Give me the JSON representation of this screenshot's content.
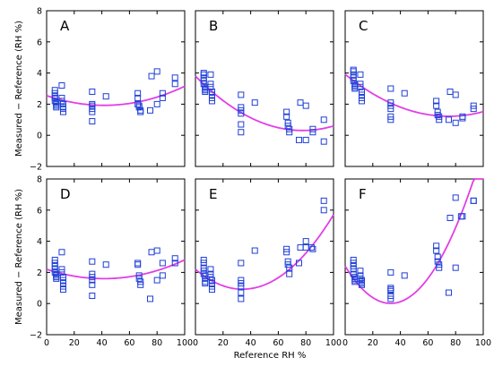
{
  "chart_data": {
    "type": "scatter",
    "xlabel": "Reference RH %",
    "ylabel": "Measured − Reference (RH %)",
    "xlim": [
      0,
      100
    ],
    "ylim": [
      -2,
      8
    ],
    "xticks": [
      "0",
      "20",
      "40",
      "60",
      "80",
      "100"
    ],
    "yticks": [
      "−2",
      "0",
      "2",
      "4",
      "6",
      "8"
    ],
    "colors": {
      "points": "#1f3fd6",
      "fit": "#e23ee6"
    },
    "panels": [
      {
        "label": "A",
        "points": [
          [
            6,
            2.9
          ],
          [
            6,
            2.7
          ],
          [
            6,
            2.5
          ],
          [
            6,
            2.4
          ],
          [
            6,
            2.2
          ],
          [
            7,
            2.1
          ],
          [
            7,
            2.0
          ],
          [
            7,
            1.9
          ],
          [
            7,
            1.8
          ],
          [
            11,
            3.2
          ],
          [
            11,
            2.4
          ],
          [
            11,
            2.2
          ],
          [
            12,
            2.0
          ],
          [
            12,
            1.8
          ],
          [
            12,
            1.7
          ],
          [
            12,
            1.5
          ],
          [
            33,
            2.8
          ],
          [
            33,
            2.0
          ],
          [
            33,
            1.9
          ],
          [
            33,
            1.7
          ],
          [
            33,
            1.5
          ],
          [
            33,
            0.9
          ],
          [
            43,
            2.5
          ],
          [
            66,
            2.7
          ],
          [
            66,
            2.4
          ],
          [
            66,
            2.0
          ],
          [
            67,
            1.9
          ],
          [
            67,
            1.8
          ],
          [
            68,
            1.6
          ],
          [
            68,
            1.5
          ],
          [
            75,
            1.6
          ],
          [
            76,
            3.8
          ],
          [
            80,
            4.1
          ],
          [
            80,
            2.0
          ],
          [
            84,
            2.7
          ],
          [
            84,
            2.4
          ],
          [
            93,
            3.7
          ],
          [
            93,
            3.3
          ]
        ],
        "fit": [
          2.55,
          -0.03,
          0.00036
        ]
      },
      {
        "label": "B",
        "points": [
          [
            6,
            4.0
          ],
          [
            6,
            3.9
          ],
          [
            6,
            3.7
          ],
          [
            6,
            3.5
          ],
          [
            6,
            3.3
          ],
          [
            7,
            3.1
          ],
          [
            7,
            3.0
          ],
          [
            7,
            2.9
          ],
          [
            7,
            2.8
          ],
          [
            11,
            3.9
          ],
          [
            11,
            3.3
          ],
          [
            11,
            3.1
          ],
          [
            12,
            2.8
          ],
          [
            12,
            2.6
          ],
          [
            12,
            2.4
          ],
          [
            12,
            2.2
          ],
          [
            33,
            2.6
          ],
          [
            33,
            1.8
          ],
          [
            33,
            1.6
          ],
          [
            33,
            1.4
          ],
          [
            33,
            0.7
          ],
          [
            33,
            0.2
          ],
          [
            43,
            2.1
          ],
          [
            66,
            1.5
          ],
          [
            66,
            1.2
          ],
          [
            67,
            0.8
          ],
          [
            67,
            0.6
          ],
          [
            68,
            0.4
          ],
          [
            68,
            0.2
          ],
          [
            75,
            -0.3
          ],
          [
            76,
            2.1
          ],
          [
            80,
            1.9
          ],
          [
            80,
            -0.3
          ],
          [
            85,
            0.4
          ],
          [
            85,
            0.2
          ],
          [
            93,
            1.0
          ],
          [
            93,
            -0.4
          ]
        ],
        "fit": [
          3.8,
          -0.09,
          0.00058
        ]
      },
      {
        "label": "C",
        "points": [
          [
            6,
            4.2
          ],
          [
            6,
            4.1
          ],
          [
            6,
            3.9
          ],
          [
            6,
            3.7
          ],
          [
            6,
            3.5
          ],
          [
            7,
            3.3
          ],
          [
            7,
            3.2
          ],
          [
            7,
            3.1
          ],
          [
            7,
            3.0
          ],
          [
            11,
            3.9
          ],
          [
            11,
            3.3
          ],
          [
            11,
            3.1
          ],
          [
            12,
            2.8
          ],
          [
            12,
            2.6
          ],
          [
            12,
            2.4
          ],
          [
            12,
            2.2
          ],
          [
            33,
            3.0
          ],
          [
            33,
            2.1
          ],
          [
            33,
            1.9
          ],
          [
            33,
            1.7
          ],
          [
            33,
            1.2
          ],
          [
            33,
            1.0
          ],
          [
            43,
            2.7
          ],
          [
            66,
            2.2
          ],
          [
            66,
            1.9
          ],
          [
            67,
            1.5
          ],
          [
            67,
            1.3
          ],
          [
            68,
            1.2
          ],
          [
            68,
            1.0
          ],
          [
            75,
            1.0
          ],
          [
            76,
            2.8
          ],
          [
            80,
            2.6
          ],
          [
            80,
            0.8
          ],
          [
            85,
            1.2
          ],
          [
            85,
            1.1
          ],
          [
            93,
            1.9
          ],
          [
            93,
            1.7
          ]
        ],
        "fit": [
          3.92,
          -0.072,
          0.00048
        ]
      },
      {
        "label": "D",
        "points": [
          [
            6,
            2.8
          ],
          [
            6,
            2.6
          ],
          [
            6,
            2.4
          ],
          [
            6,
            2.2
          ],
          [
            6,
            2.0
          ],
          [
            7,
            1.9
          ],
          [
            7,
            1.8
          ],
          [
            7,
            1.7
          ],
          [
            7,
            1.6
          ],
          [
            11,
            3.3
          ],
          [
            11,
            2.2
          ],
          [
            11,
            2.0
          ],
          [
            12,
            1.7
          ],
          [
            12,
            1.5
          ],
          [
            12,
            1.3
          ],
          [
            12,
            1.1
          ],
          [
            12,
            0.9
          ],
          [
            33,
            2.7
          ],
          [
            33,
            1.9
          ],
          [
            33,
            1.7
          ],
          [
            33,
            1.5
          ],
          [
            33,
            1.2
          ],
          [
            33,
            0.5
          ],
          [
            43,
            2.5
          ],
          [
            66,
            2.6
          ],
          [
            66,
            2.5
          ],
          [
            67,
            1.8
          ],
          [
            67,
            1.6
          ],
          [
            68,
            1.4
          ],
          [
            68,
            1.2
          ],
          [
            75,
            0.3
          ],
          [
            76,
            3.3
          ],
          [
            80,
            3.4
          ],
          [
            80,
            1.5
          ],
          [
            84,
            2.6
          ],
          [
            84,
            1.8
          ],
          [
            93,
            2.9
          ],
          [
            93,
            2.6
          ]
        ],
        "fit": [
          2.2,
          -0.029,
          0.00035
        ]
      },
      {
        "label": "E",
        "points": [
          [
            6,
            2.8
          ],
          [
            6,
            2.6
          ],
          [
            6,
            2.3
          ],
          [
            6,
            2.1
          ],
          [
            6,
            1.9
          ],
          [
            7,
            1.8
          ],
          [
            7,
            1.6
          ],
          [
            7,
            1.4
          ],
          [
            7,
            1.3
          ],
          [
            11,
            2.2
          ],
          [
            11,
            1.9
          ],
          [
            11,
            1.7
          ],
          [
            12,
            1.5
          ],
          [
            12,
            1.3
          ],
          [
            12,
            1.1
          ],
          [
            12,
            0.9
          ],
          [
            33,
            2.6
          ],
          [
            33,
            1.5
          ],
          [
            33,
            1.3
          ],
          [
            33,
            1.1
          ],
          [
            33,
            0.7
          ],
          [
            33,
            0.3
          ],
          [
            43,
            3.4
          ],
          [
            66,
            3.5
          ],
          [
            66,
            3.3
          ],
          [
            67,
            2.7
          ],
          [
            67,
            2.5
          ],
          [
            68,
            2.3
          ],
          [
            68,
            1.9
          ],
          [
            75,
            2.6
          ],
          [
            76,
            3.6
          ],
          [
            80,
            4.0
          ],
          [
            80,
            3.6
          ],
          [
            84,
            3.6
          ],
          [
            85,
            3.5
          ],
          [
            93,
            6.6
          ],
          [
            93,
            6.0
          ]
        ],
        "fit": [
          2.2,
          -0.075,
          0.0011
        ]
      },
      {
        "label": "F",
        "points": [
          [
            6,
            2.8
          ],
          [
            6,
            2.6
          ],
          [
            6,
            2.4
          ],
          [
            6,
            2.2
          ],
          [
            6,
            1.9
          ],
          [
            7,
            1.7
          ],
          [
            7,
            1.6
          ],
          [
            7,
            1.5
          ],
          [
            7,
            1.4
          ],
          [
            11,
            2.1
          ],
          [
            11,
            1.8
          ],
          [
            11,
            1.6
          ],
          [
            12,
            1.5
          ],
          [
            12,
            1.4
          ],
          [
            12,
            1.3
          ],
          [
            12,
            1.2
          ],
          [
            33,
            2.0
          ],
          [
            33,
            1.0
          ],
          [
            33,
            0.9
          ],
          [
            33,
            0.8
          ],
          [
            33,
            0.5
          ],
          [
            33,
            0.3
          ],
          [
            43,
            1.8
          ],
          [
            66,
            3.7
          ],
          [
            66,
            3.4
          ],
          [
            67,
            3.0
          ],
          [
            67,
            2.7
          ],
          [
            68,
            2.5
          ],
          [
            68,
            2.3
          ],
          [
            75,
            0.7
          ],
          [
            76,
            5.5
          ],
          [
            80,
            6.8
          ],
          [
            80,
            2.3
          ],
          [
            84,
            5.6
          ],
          [
            85,
            5.6
          ],
          [
            93,
            6.6
          ],
          [
            93,
            6.6
          ]
        ],
        "fit": [
          2.4,
          -0.145,
          0.0022
        ]
      }
    ]
  }
}
